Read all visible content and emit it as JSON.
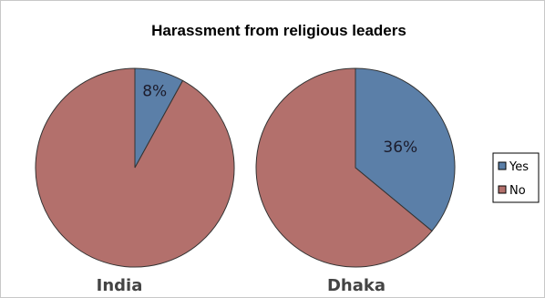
{
  "chart_data": {
    "type": "pie",
    "title": "Harassment from religious leaders",
    "legend": {
      "position": "right",
      "entries": [
        {
          "name": "Yes",
          "color": "#5b7fa8"
        },
        {
          "name": "No",
          "color": "#b3706c"
        }
      ]
    },
    "pies": [
      {
        "name": "India",
        "slices": [
          {
            "category": "Yes",
            "value": 8,
            "label": "8%"
          },
          {
            "category": "No",
            "value": 92,
            "label": ""
          }
        ]
      },
      {
        "name": "Dhaka",
        "slices": [
          {
            "category": "Yes",
            "value": 36,
            "label": "36%"
          },
          {
            "category": "No",
            "value": 64,
            "label": ""
          }
        ]
      }
    ]
  }
}
